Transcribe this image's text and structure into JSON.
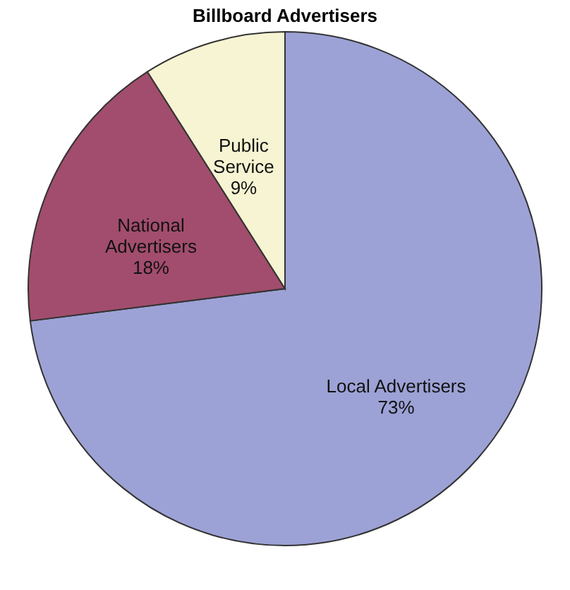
{
  "chart_data": {
    "type": "pie",
    "title": "Billboard Advertisers",
    "categories": [
      "Local Advertisers",
      "National Advertisers",
      "Public Service"
    ],
    "values": [
      73,
      18,
      9
    ],
    "value_labels": [
      "73%",
      "18%",
      "9%"
    ],
    "colors": [
      "#9da2d6",
      "#a24d6d",
      "#f6f4d2"
    ],
    "legend": false
  }
}
